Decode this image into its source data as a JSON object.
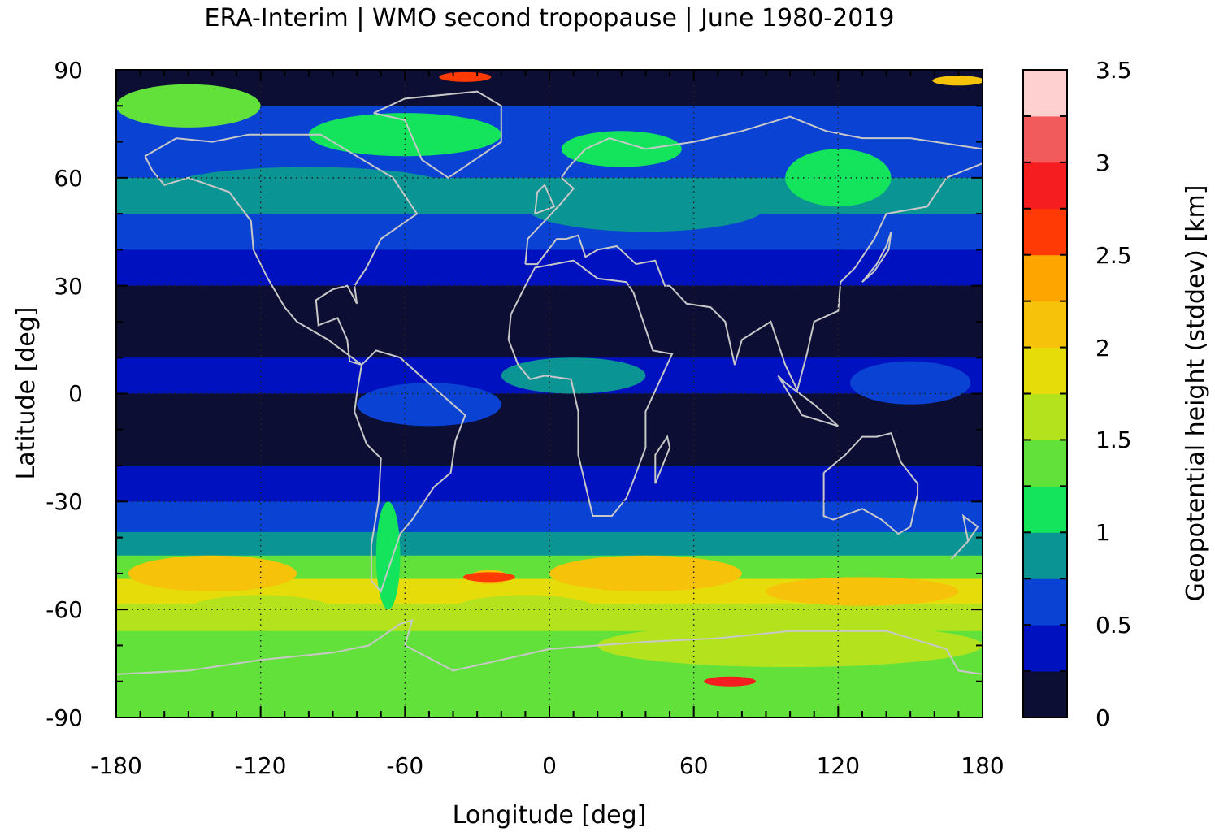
{
  "chart_data": {
    "type": "heatmap",
    "title": "ERA-Interim | WMO second tropopause | June 1980-2019",
    "xlabel": "Longitude [deg]",
    "ylabel": "Latitude [deg]",
    "xlim": [
      -180,
      180
    ],
    "ylim": [
      -90,
      90
    ],
    "x_ticks": [
      "-180",
      "-120",
      "-60",
      "0",
      "60",
      "120",
      "180"
    ],
    "y_ticks": [
      "90",
      "60",
      "30",
      "0",
      "-30",
      "-60",
      "-90"
    ],
    "colorbar": {
      "label": "Geopotential height (stddev) [km]",
      "range": [
        0,
        3.5
      ],
      "ticks": [
        "3.5",
        "3",
        "2.5",
        "2",
        "1.5",
        "1",
        "0.5",
        "0"
      ],
      "step": 0.25,
      "colors": [
        "#0c0f33",
        "#0012c0",
        "#0a43d4",
        "#0b9494",
        "#13e45c",
        "#63e13b",
        "#b4e31e",
        "#e6dc0a",
        "#f6c20a",
        "#ffa500",
        "#ff3a05",
        "#f51d20",
        "#f25b5b",
        "#ffd0d0"
      ]
    },
    "grid": "dotted at 60° longitude and 30° latitude",
    "zonal_profile_approx": [
      {
        "lat": 85,
        "value": 0.1
      },
      {
        "lat": 75,
        "value": 0.5
      },
      {
        "lat": 65,
        "value": 0.7
      },
      {
        "lat": 55,
        "value": 0.85
      },
      {
        "lat": 45,
        "value": 0.6
      },
      {
        "lat": 35,
        "value": 0.4
      },
      {
        "lat": 25,
        "value": 0.15
      },
      {
        "lat": 15,
        "value": 0.1
      },
      {
        "lat": 5,
        "value": 0.35
      },
      {
        "lat": -5,
        "value": 0.2
      },
      {
        "lat": -15,
        "value": 0.1
      },
      {
        "lat": -25,
        "value": 0.4
      },
      {
        "lat": -35,
        "value": 0.6
      },
      {
        "lat": -42,
        "value": 0.85
      },
      {
        "lat": -48,
        "value": 1.4
      },
      {
        "lat": -55,
        "value": 1.9
      },
      {
        "lat": -62,
        "value": 1.7
      },
      {
        "lat": -70,
        "value": 1.45
      },
      {
        "lat": -80,
        "value": 1.4
      },
      {
        "lat": -87,
        "value": 1.3
      }
    ],
    "hotspots": [
      {
        "lon": 75,
        "lat": -80,
        "value": 2.8
      },
      {
        "lon": -25,
        "lat": -51,
        "value": 2.6
      },
      {
        "lon": 170,
        "lat": 87,
        "value": 2.2
      },
      {
        "lon": -35,
        "lat": 88,
        "value": 2.5
      }
    ]
  }
}
